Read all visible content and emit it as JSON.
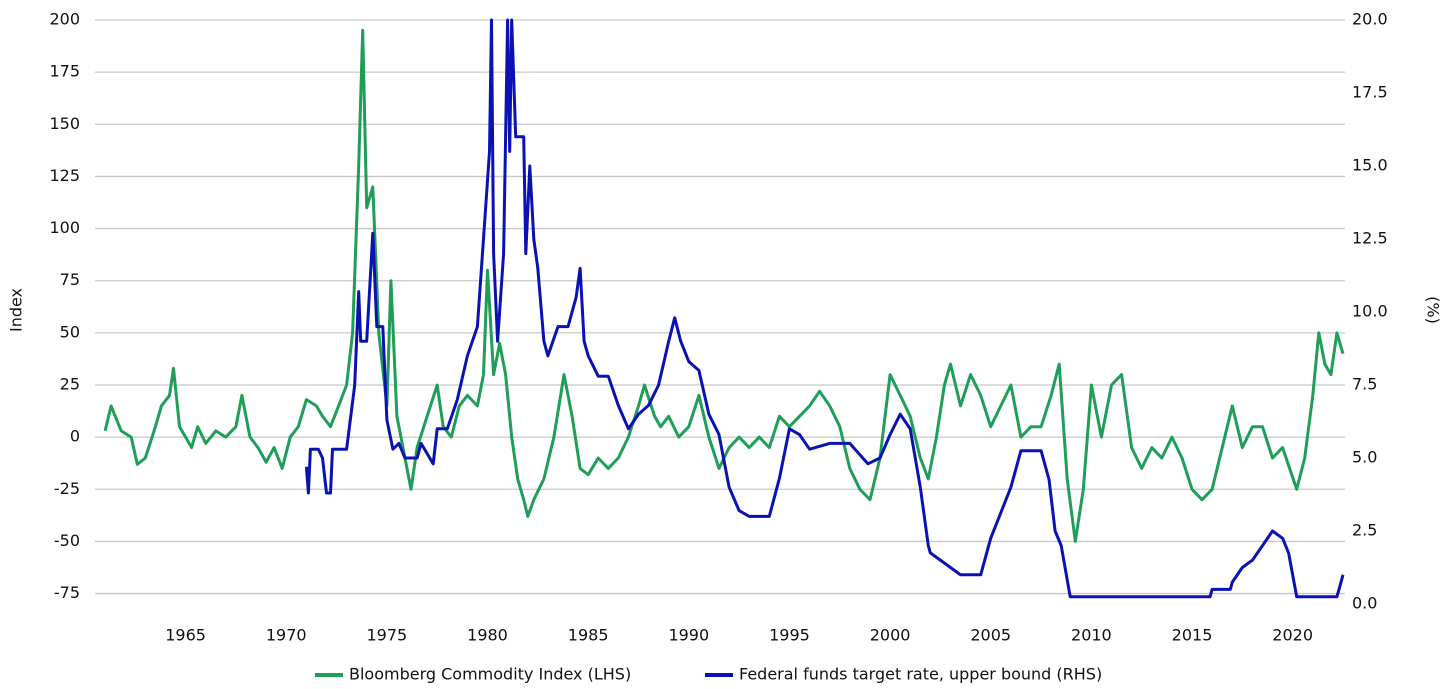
{
  "chart_data": {
    "type": "line",
    "y_label": "Index",
    "y2_label": "(%)",
    "xlim": [
      1960.5,
      2022.6
    ],
    "xticks": [
      1965,
      1970,
      1975,
      1980,
      1985,
      1990,
      1995,
      2000,
      2005,
      2010,
      2015,
      2020
    ],
    "ylim": [
      -80,
      200
    ],
    "yticks": [
      -75,
      -50,
      -25,
      0,
      25,
      50,
      75,
      100,
      125,
      150,
      175,
      200
    ],
    "y2lim": [
      0,
      20
    ],
    "y2ticks": [
      {
        "value": 0,
        "label": "0.0"
      },
      2.5,
      {
        "value": 5,
        "label": "5.0"
      },
      7.5,
      {
        "value": 10,
        "label": "10.0"
      },
      12.5,
      {
        "value": 15,
        "label": "15.0"
      },
      17.5,
      {
        "value": 20,
        "label": "20.0"
      }
    ],
    "grid": true,
    "legend": "bottom",
    "series": [
      {
        "name": "Bloomberg Commodity Index (LHS)",
        "color": "#1e9e58",
        "x": [
          1961,
          1961.3,
          1961.8,
          1962.3,
          1962.6,
          1963,
          1963.5,
          1963.8,
          1964.2,
          1964.4,
          1964.7,
          1965,
          1965.3,
          1965.6,
          1966,
          1966.5,
          1967,
          1967.5,
          1967.8,
          1968.2,
          1968.6,
          1969,
          1969.4,
          1969.8,
          1970.2,
          1970.6,
          1971,
          1971.5,
          1971.8,
          1972.2,
          1972.6,
          1973,
          1973.3,
          1973.6,
          1973.8,
          1974,
          1974.3,
          1974.6,
          1975,
          1975.2,
          1975.5,
          1975.8,
          1976.2,
          1976.5,
          1977,
          1977.5,
          1977.8,
          1978.2,
          1978.6,
          1979,
          1979.5,
          1979.8,
          1980,
          1980.3,
          1980.6,
          1980.9,
          1981.2,
          1981.5,
          1981.8,
          1982,
          1982.3,
          1982.8,
          1983.3,
          1983.8,
          1984.2,
          1984.6,
          1985,
          1985.5,
          1986,
          1986.5,
          1987,
          1987.5,
          1987.8,
          1988.3,
          1988.6,
          1989,
          1989.5,
          1990,
          1990.5,
          1991,
          1991.5,
          1992,
          1992.5,
          1993,
          1993.5,
          1994,
          1994.5,
          1995,
          1995.5,
          1996,
          1996.5,
          1997,
          1997.5,
          1998,
          1998.5,
          1999,
          1999.5,
          2000,
          2000.5,
          2001,
          2001.5,
          2001.9,
          2002.3,
          2002.7,
          2003,
          2003.5,
          2004,
          2004.5,
          2005,
          2005.5,
          2006,
          2006.5,
          2007,
          2007.5,
          2008,
          2008.4,
          2008.8,
          2009.2,
          2009.6,
          2010,
          2010.5,
          2011,
          2011.5,
          2012,
          2012.5,
          2013,
          2013.5,
          2014,
          2014.5,
          2015,
          2015.5,
          2016,
          2016.5,
          2017,
          2017.5,
          2018,
          2018.5,
          2019,
          2019.5,
          2020.2,
          2020.6,
          2021,
          2021.3,
          2021.6,
          2021.9,
          2022.2,
          2022.5
        ],
        "values": [
          3,
          15,
          3,
          0,
          -13,
          -10,
          5,
          15,
          20,
          33,
          5,
          0,
          -5,
          5,
          -3,
          3,
          0,
          5,
          20,
          0,
          -5,
          -12,
          -5,
          -15,
          0,
          5,
          18,
          15,
          10,
          5,
          15,
          25,
          50,
          130,
          195,
          110,
          120,
          50,
          15,
          75,
          10,
          -5,
          -25,
          -5,
          10,
          25,
          5,
          0,
          15,
          20,
          15,
          30,
          80,
          30,
          45,
          30,
          0,
          -20,
          -30,
          -38,
          -30,
          -20,
          0,
          30,
          10,
          -15,
          -18,
          -10,
          -15,
          -10,
          0,
          15,
          25,
          10,
          5,
          10,
          0,
          5,
          20,
          0,
          -15,
          -5,
          0,
          -5,
          0,
          -5,
          10,
          5,
          10,
          15,
          22,
          15,
          5,
          -15,
          -25,
          -30,
          -10,
          30,
          20,
          10,
          -10,
          -20,
          0,
          25,
          35,
          15,
          30,
          20,
          5,
          15,
          25,
          0,
          5,
          5,
          20,
          35,
          -20,
          -50,
          -25,
          25,
          0,
          25,
          30,
          -5,
          -15,
          -5,
          -10,
          0,
          -10,
          -25,
          -30,
          -25,
          -5,
          15,
          -5,
          5,
          5,
          -10,
          -5,
          -25,
          -10,
          20,
          50,
          35,
          30,
          50,
          40
        ]
      },
      {
        "name": "Federal funds target rate, upper bound (RHS)",
        "color": "#0a12b4",
        "axis": "y2",
        "x": [
          1971,
          1971.1,
          1971.2,
          1971.6,
          1971.8,
          1972,
          1972.2,
          1972.3,
          1973,
          1973.4,
          1973.6,
          1973.7,
          1974,
          1974.3,
          1974.5,
          1974.8,
          1975,
          1975.3,
          1975.6,
          1975.9,
          1976.5,
          1976.7,
          1977.3,
          1977.5,
          1978,
          1978.5,
          1979,
          1979.5,
          1979.9,
          1980.1,
          1980.2,
          1980.3,
          1980.5,
          1980.8,
          1981,
          1981.1,
          1981.2,
          1981.4,
          1981.8,
          1981.9,
          1982.1,
          1982.3,
          1982.5,
          1982.8,
          1983,
          1983.5,
          1984,
          1984.4,
          1984.6,
          1984.8,
          1985,
          1985.5,
          1986,
          1986.5,
          1987,
          1987.5,
          1988,
          1988.5,
          1989,
          1989.3,
          1989.6,
          1990,
          1990.5,
          1991,
          1991.5,
          1992,
          1992.5,
          1993,
          1994,
          1994.5,
          1995,
          1995.5,
          1996,
          1997,
          1998,
          1998.9,
          1999.5,
          2000,
          2000.5,
          2001,
          2001.5,
          2001.9,
          2002,
          2003,
          2003.5,
          2004.5,
          2005,
          2006,
          2006.5,
          2007.5,
          2007.9,
          2008.2,
          2008.5,
          2008.95,
          2015.9,
          2016,
          2016.9,
          2017,
          2017.5,
          2018,
          2018.5,
          2019,
          2019.5,
          2019.8,
          2020.2,
          2022.2,
          2022.3,
          2022.5
        ],
        "values": [
          4.7,
          3.8,
          5.3,
          5.3,
          5,
          3.8,
          3.8,
          5.3,
          5.3,
          7.5,
          10.7,
          9,
          9,
          12.7,
          9.5,
          9.5,
          6.3,
          5.3,
          5.5,
          5,
          5,
          5.5,
          4.8,
          6,
          6,
          7,
          8.5,
          9.5,
          13.5,
          15.5,
          20,
          12,
          9,
          12,
          20,
          15.5,
          20,
          16,
          16,
          12,
          15,
          12.5,
          11.5,
          9,
          8.5,
          9.5,
          9.5,
          10.5,
          11.5,
          9,
          8.5,
          7.8,
          7.8,
          6.8,
          6,
          6.5,
          6.8,
          7.5,
          9,
          9.8,
          9,
          8.3,
          8,
          6.5,
          5.8,
          4,
          3.2,
          3,
          3,
          4.3,
          6,
          5.8,
          5.3,
          5.5,
          5.5,
          4.8,
          5,
          5.8,
          6.5,
          6,
          4,
          2,
          1.75,
          1.25,
          1,
          1,
          2.25,
          4,
          5.25,
          5.25,
          4.25,
          2.5,
          2,
          0.25,
          0.25,
          0.5,
          0.5,
          0.75,
          1.25,
          1.5,
          2,
          2.5,
          2.25,
          1.75,
          0.25,
          0.25,
          0.5,
          1
        ]
      }
    ]
  }
}
